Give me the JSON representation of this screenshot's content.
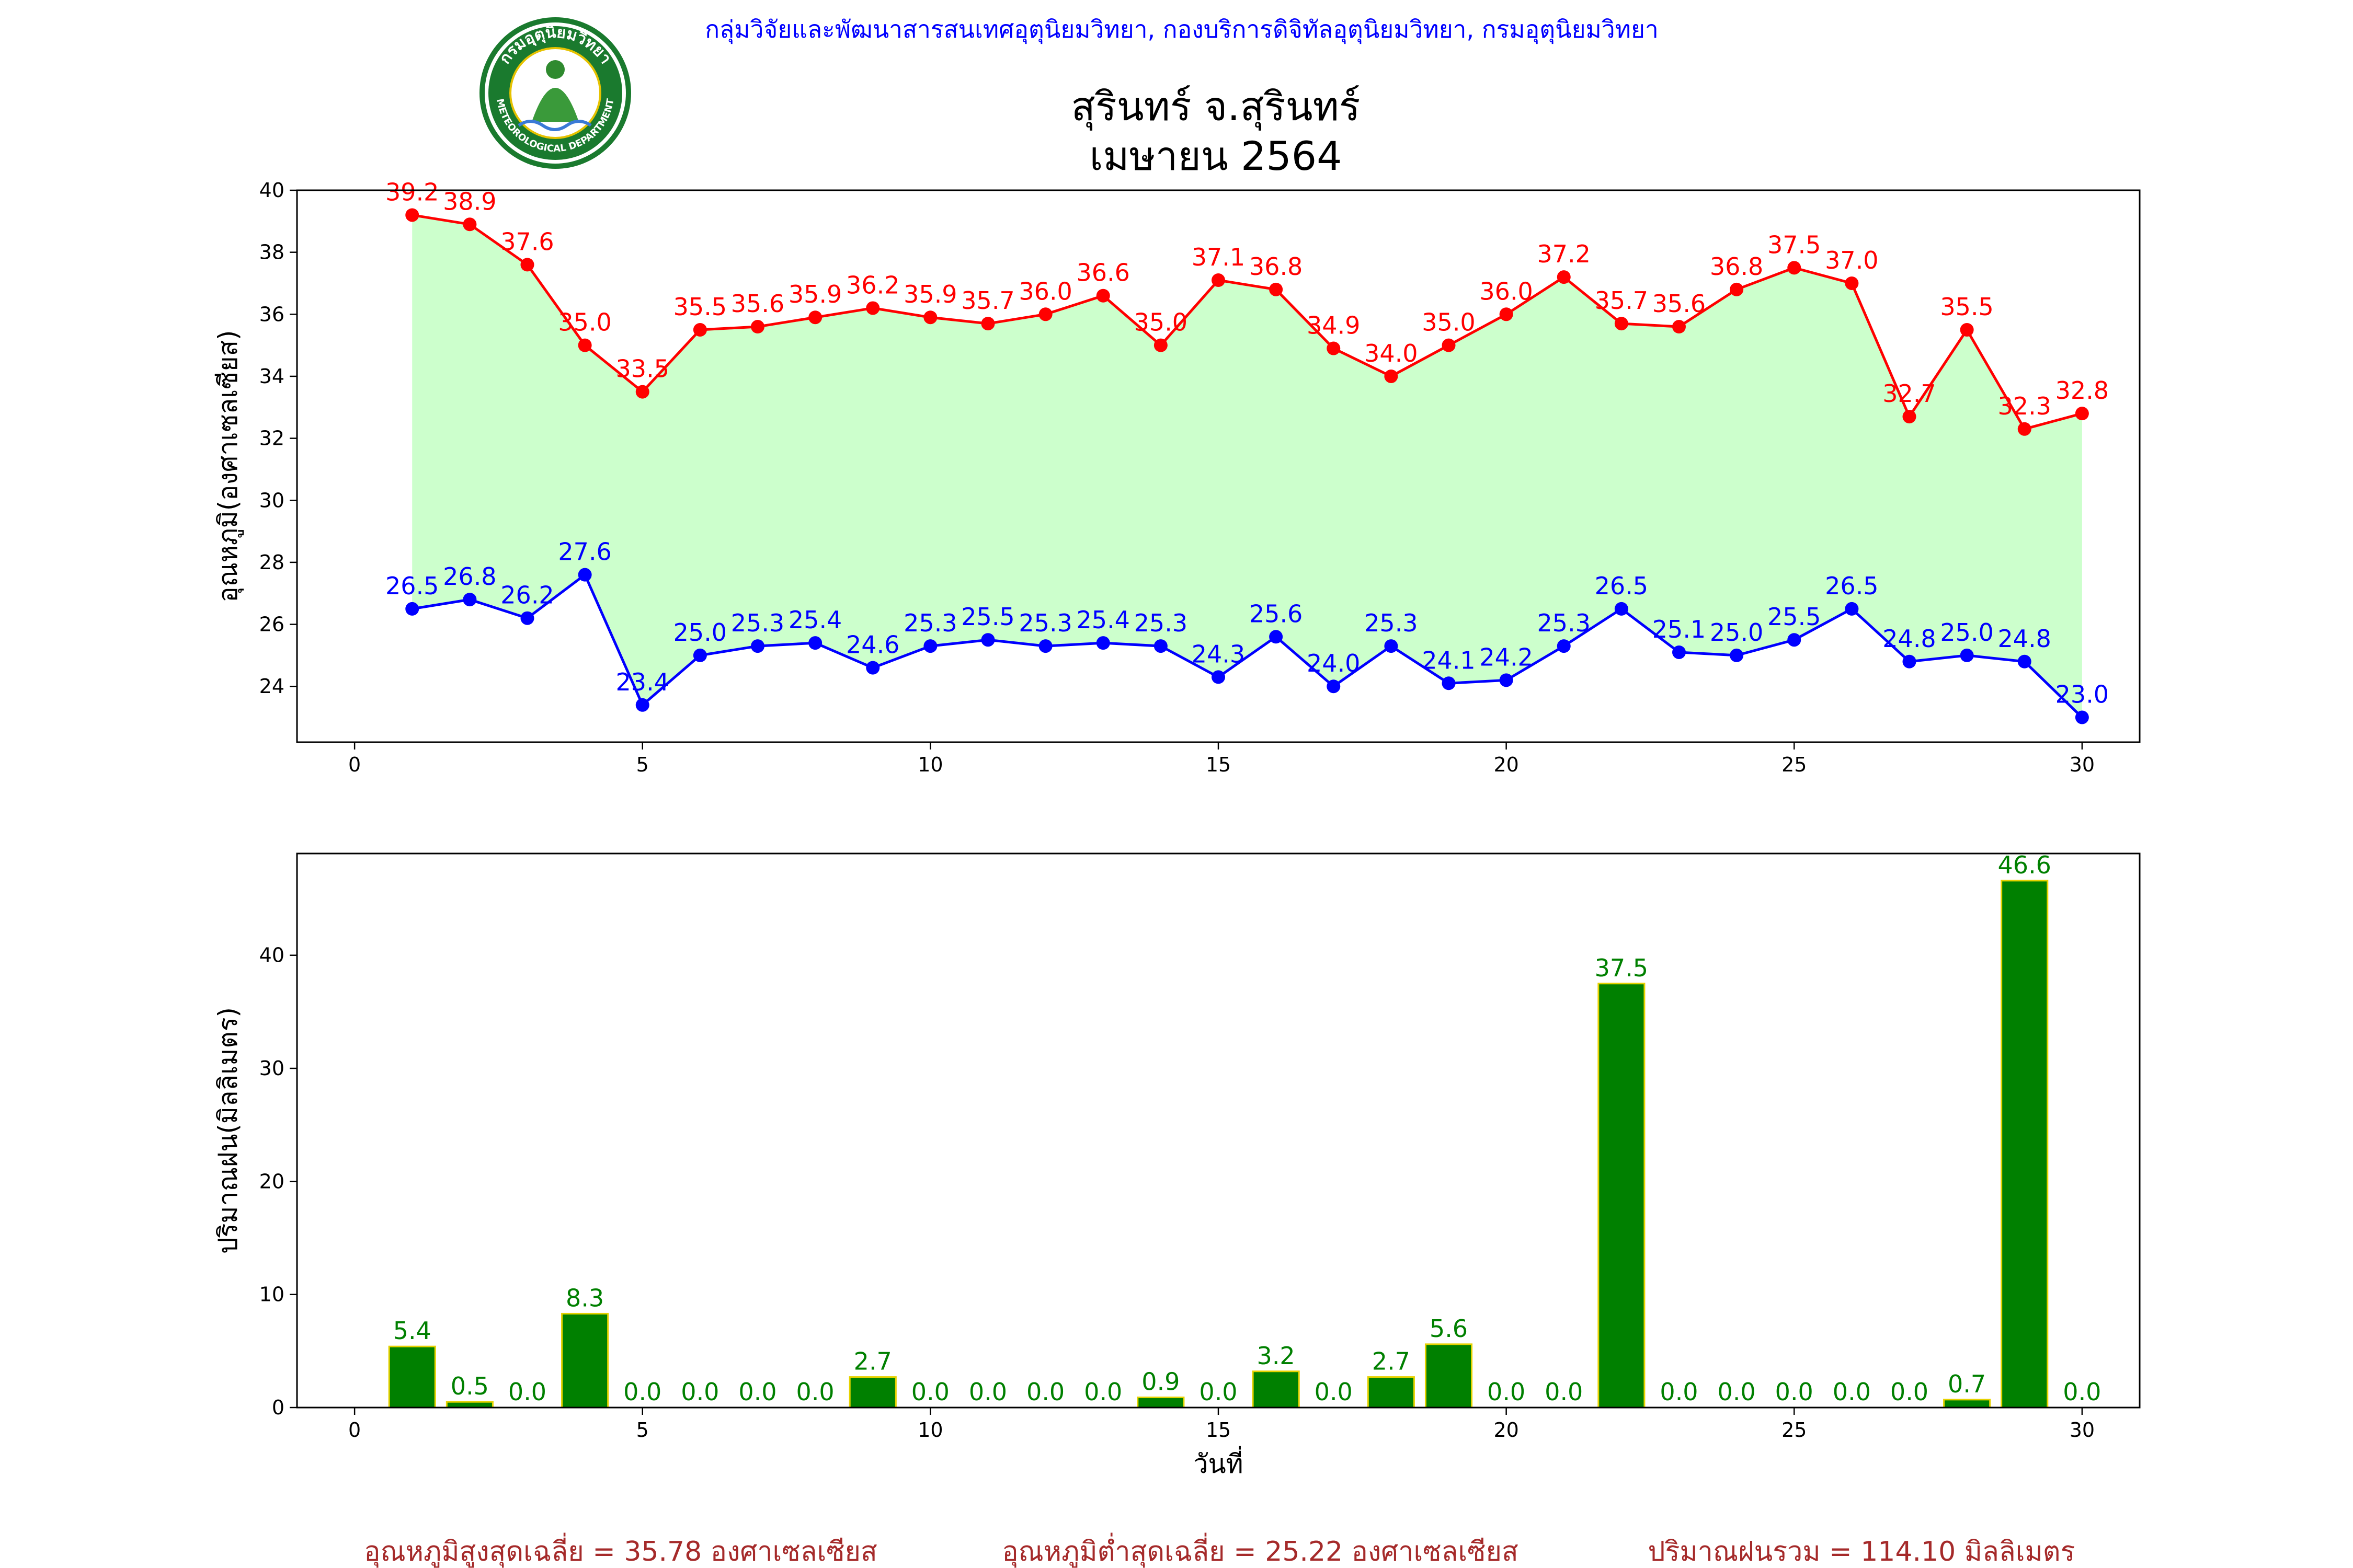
{
  "header": {
    "agency_line": "กลุ่มวิจัยและพัฒนาสารสนเทศอุตุนิยมวิทยา, กองบริการดิจิทัลอุตุนิยมวิทยา, กรมอุตุนิยมวิทยา",
    "title_line1": "สุรินทร์ จ.สุรินทร์",
    "title_line2": "เมษายน 2564",
    "logo": {
      "top_text": "กรมอุตุนิยมวิทยา",
      "bottom_text": "METEOROLOGICAL DEPARTMENT",
      "ring_color": "#1a7a2e",
      "inner_color": "#3a9a3a"
    }
  },
  "footer": {
    "avg_max": "อุณหภูมิสูงสุดเฉลี่ย = 35.78 องศาเซลเซียส",
    "avg_min": "อุณหภูมิต่ำสุดเฉลี่ย = 25.22 องศาเซลเซียส",
    "total_rain": "ปริมาณฝนรวม = 114.10 มิลลิเมตร"
  },
  "chart_data": [
    {
      "type": "line",
      "ylabel": "อุณหภูมิ(องศาเซลเซียส)",
      "xlabel": "",
      "x": [
        1,
        2,
        3,
        4,
        5,
        6,
        7,
        8,
        9,
        10,
        11,
        12,
        13,
        14,
        15,
        16,
        17,
        18,
        19,
        20,
        21,
        22,
        23,
        24,
        25,
        26,
        27,
        28,
        29,
        30
      ],
      "xlim": [
        -1,
        31
      ],
      "ylim": [
        22.2,
        40
      ],
      "xticks": [
        0,
        5,
        10,
        15,
        20,
        25,
        30
      ],
      "yticks": [
        24,
        26,
        28,
        30,
        32,
        34,
        36,
        38,
        40
      ],
      "fill_between": {
        "color": "#ccffcc"
      },
      "series": [
        {
          "color": "#ff0000",
          "values": [
            39.2,
            38.9,
            37.6,
            35.0,
            33.5,
            35.5,
            35.6,
            35.9,
            36.2,
            35.9,
            35.7,
            36.0,
            36.6,
            35.0,
            37.1,
            36.8,
            34.9,
            34.0,
            35.0,
            36.0,
            37.2,
            35.7,
            35.6,
            36.8,
            37.5,
            37.0,
            32.7,
            35.5,
            32.3,
            32.8
          ],
          "labels": [
            "39.2",
            "38.9",
            "37.6",
            "35.0",
            "33.5",
            "35.5",
            "35.6",
            "35.9",
            "36.2",
            "35.9",
            "35.7",
            "36.0",
            "36.6",
            "35.0",
            "37.1",
            "36.8",
            "34.9",
            "34.0",
            "35.0",
            "36.0",
            "37.2",
            "35.7",
            "35.6",
            "36.8",
            "37.5",
            "37.0",
            "32.7",
            "35.5",
            "32.3",
            "32.8"
          ]
        },
        {
          "color": "#0000ff",
          "values": [
            26.5,
            26.8,
            26.2,
            27.6,
            23.4,
            25.0,
            25.3,
            25.4,
            24.6,
            25.3,
            25.5,
            25.3,
            25.4,
            25.3,
            24.3,
            25.6,
            24.0,
            25.3,
            24.1,
            24.2,
            25.3,
            26.5,
            25.1,
            25.0,
            25.5,
            26.5,
            24.8,
            25.0,
            24.8,
            23.0
          ],
          "labels": [
            "26.5",
            "26.8",
            "26.2",
            "27.6",
            "23.4",
            "25.0",
            "25.3",
            "25.4",
            "24.6",
            "25.3",
            "25.5",
            "25.3",
            "25.4",
            "25.3",
            "24.3",
            "25.6",
            "24.0",
            "25.3",
            "24.1",
            "24.2",
            "25.3",
            "26.5",
            "25.1",
            "25.0",
            "25.5",
            "26.5",
            "24.8",
            "25.0",
            "24.8",
            "23.0"
          ]
        }
      ],
      "grid": false
    },
    {
      "type": "bar",
      "ylabel": "ปริมาณฝน(มิลลิเมตร)",
      "xlabel": "วันที่",
      "x": [
        1,
        2,
        3,
        4,
        5,
        6,
        7,
        8,
        9,
        10,
        11,
        12,
        13,
        14,
        15,
        16,
        17,
        18,
        19,
        20,
        21,
        22,
        23,
        24,
        25,
        26,
        27,
        28,
        29,
        30
      ],
      "xlim": [
        -1,
        31
      ],
      "ylim": [
        0,
        49
      ],
      "xticks": [
        0,
        5,
        10,
        15,
        20,
        25,
        30
      ],
      "yticks": [
        0,
        10,
        20,
        30,
        40
      ],
      "bar_color": "#008000",
      "bar_edge_color": "#e6d200",
      "label_color": "#008000",
      "values": [
        5.4,
        0.5,
        0.0,
        8.3,
        0.0,
        0.0,
        0.0,
        0.0,
        2.7,
        0.0,
        0.0,
        0.0,
        0.0,
        0.9,
        0.0,
        3.2,
        0.0,
        2.7,
        5.6,
        0.0,
        0.0,
        37.5,
        0.0,
        0.0,
        0.0,
        0.0,
        0.0,
        0.7,
        46.6,
        0.0
      ],
      "labels": [
        "5.4",
        "0.5",
        "0.0",
        "8.3",
        "0.0",
        "0.0",
        "0.0",
        "0.0",
        "2.7",
        "0.0",
        "0.0",
        "0.0",
        "0.0",
        "0.9",
        "0.0",
        "3.2",
        "0.0",
        "2.7",
        "5.6",
        "0.0",
        "0.0",
        "37.5",
        "0.0",
        "0.0",
        "0.0",
        "0.0",
        "0.0",
        "0.7",
        "46.6",
        "0.0"
      ],
      "grid": false
    }
  ]
}
